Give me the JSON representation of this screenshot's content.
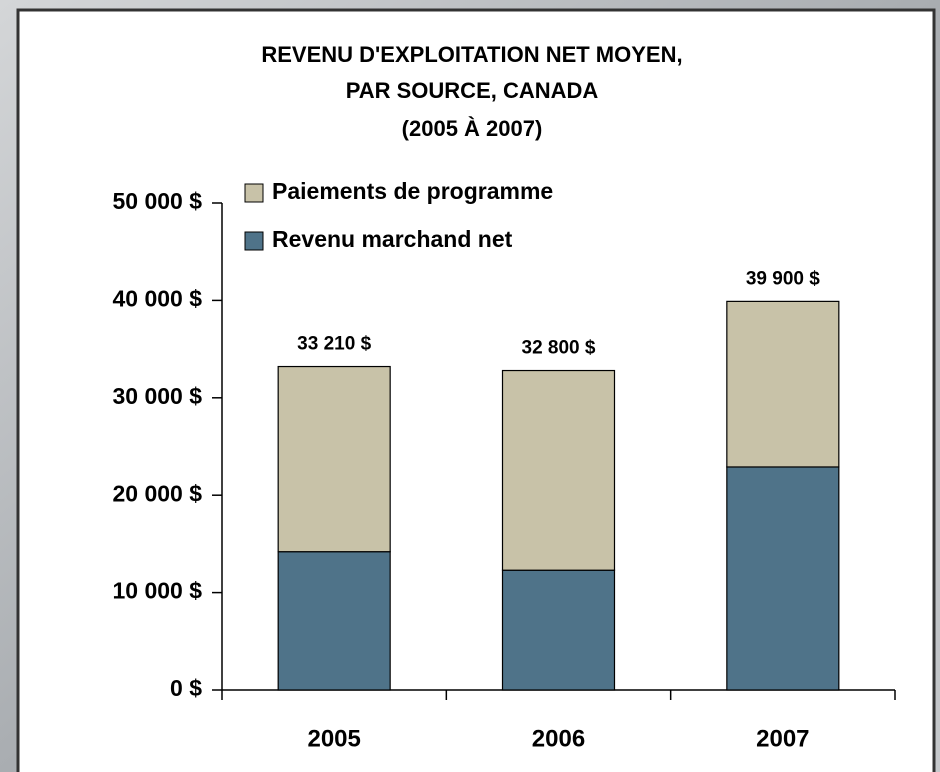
{
  "chart_data": {
    "type": "stacked_bar",
    "title": [
      "REVENU D'EXPLOITATION NET MOYEN,",
      "PAR SOURCE, CANADA",
      "(2005 À 2007)"
    ],
    "categories": [
      "2005",
      "2006",
      "2007"
    ],
    "series": [
      {
        "name": "Revenu marchand net",
        "color": "#4f7389",
        "values": [
          14200,
          12300,
          22900
        ]
      },
      {
        "name": "Paiements de programme",
        "color": "#c8c2a8",
        "values": [
          19010,
          20500,
          17000
        ]
      }
    ],
    "totals": [
      33210,
      32800,
      39900
    ],
    "total_labels": [
      "33 210 $",
      "32 800 $",
      "39 900 $"
    ],
    "ylim": [
      0,
      50000
    ],
    "yticks": [
      {
        "value": 0,
        "label": "0 $"
      },
      {
        "value": 10000,
        "label": "10 000 $"
      },
      {
        "value": 20000,
        "label": "20 000 $"
      },
      {
        "value": 30000,
        "label": "30 000 $"
      },
      {
        "value": 40000,
        "label": "40 000 $"
      },
      {
        "value": 50000,
        "label": "50 000 $"
      }
    ],
    "legend": "top-left",
    "grid": false
  }
}
